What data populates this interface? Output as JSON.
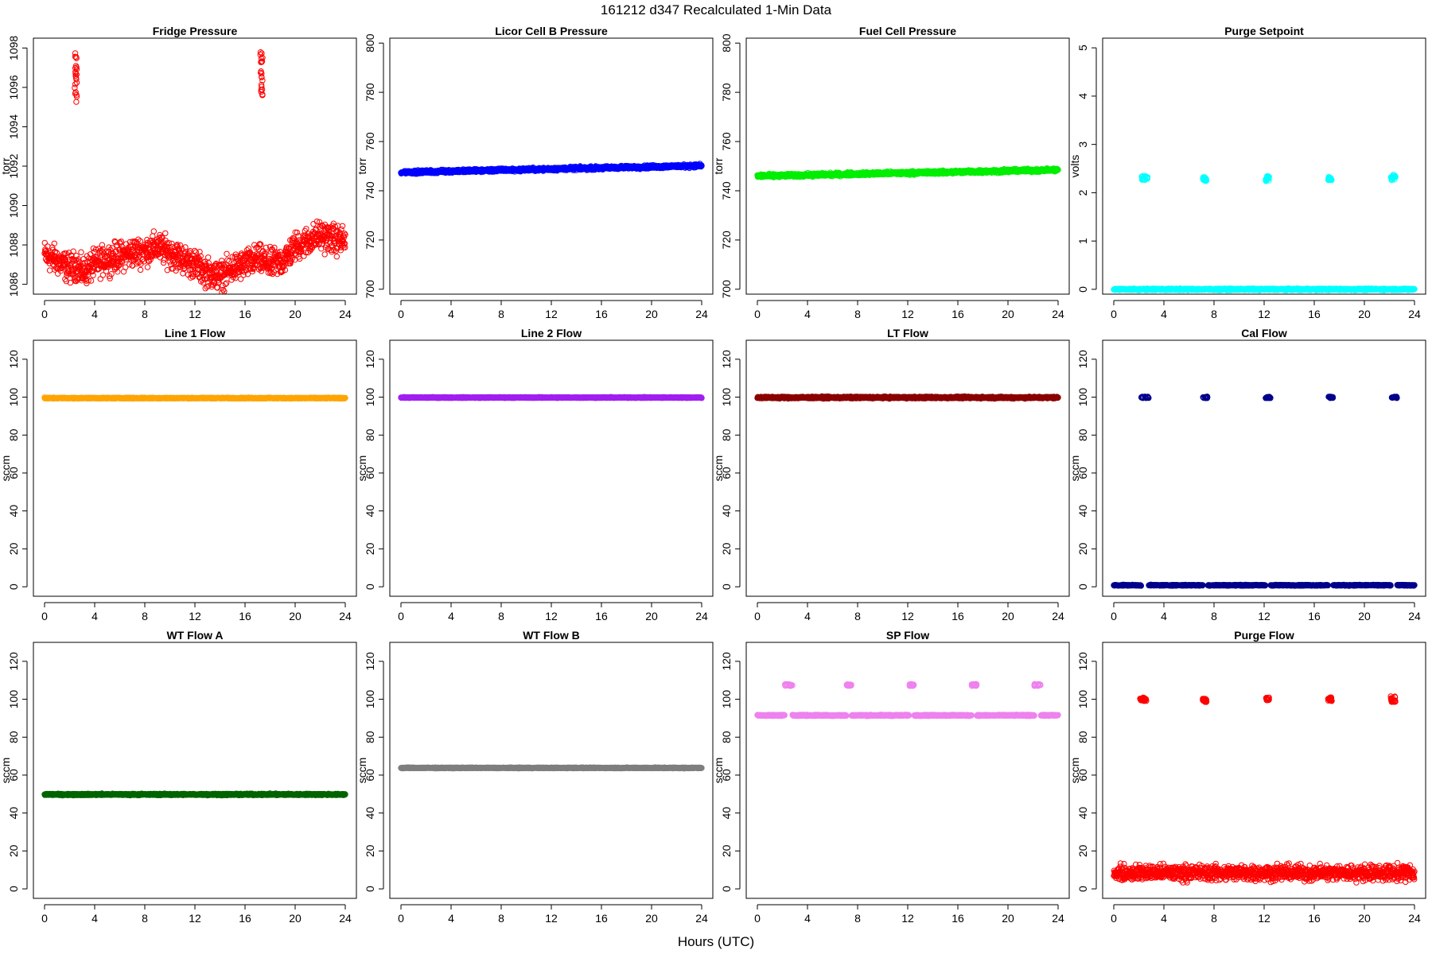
{
  "figure": {
    "title": "161212   d347   Recalculated 1-Min Data",
    "xlabel": "Hours (UTC)"
  },
  "chart_data": [
    {
      "type": "scatter",
      "title": "Fridge Pressure",
      "ylabel": "torr",
      "color": "#ff0000",
      "marker": "open",
      "xlim": [
        0,
        24
      ],
      "ylim": [
        1085.5,
        1098.5
      ],
      "xticks": [
        0,
        4,
        8,
        12,
        16,
        20,
        24
      ],
      "yticks": [
        1086,
        1088,
        1090,
        1092,
        1094,
        1096,
        1098
      ],
      "baseline": [
        [
          0,
          1087.5
        ],
        [
          1,
          1087.2
        ],
        [
          2,
          1086.8
        ],
        [
          2.5,
          1087.0
        ],
        [
          3,
          1086.6
        ],
        [
          4,
          1087.0
        ],
        [
          5,
          1087.3
        ],
        [
          6,
          1087.4
        ],
        [
          7,
          1087.6
        ],
        [
          8,
          1087.7
        ],
        [
          9,
          1087.9
        ],
        [
          10,
          1087.6
        ],
        [
          11,
          1087.3
        ],
        [
          12,
          1087.0
        ],
        [
          13,
          1086.6
        ],
        [
          14,
          1086.4
        ],
        [
          15,
          1086.8
        ],
        [
          16,
          1087.0
        ],
        [
          17,
          1087.3
        ],
        [
          18,
          1087.0
        ],
        [
          19,
          1087.2
        ],
        [
          20,
          1087.9
        ],
        [
          21,
          1088.2
        ],
        [
          22,
          1088.5
        ],
        [
          23,
          1088.3
        ],
        [
          24,
          1088.2
        ]
      ],
      "noise": 0.9,
      "step": 0.02,
      "density": 1,
      "spikes": [
        {
          "x": [
            2.4,
            2.6
          ],
          "y": [
            1095.2,
            1097.8
          ]
        },
        {
          "x": [
            17.2,
            17.4
          ],
          "y": [
            1095.5,
            1097.9
          ]
        }
      ]
    },
    {
      "type": "scatter",
      "title": "Licor Cell B Pressure",
      "ylabel": "torr",
      "color": "#0000ff",
      "marker": "open",
      "xlim": [
        0,
        24
      ],
      "ylim": [
        698,
        802
      ],
      "xticks": [
        0,
        4,
        8,
        12,
        16,
        20,
        24
      ],
      "yticks": [
        700,
        720,
        740,
        760,
        780,
        800
      ],
      "baseline": [
        [
          0,
          747.5
        ],
        [
          24,
          750.2
        ]
      ],
      "noise": 0.8,
      "step": 0.02,
      "density": 1,
      "spikes": []
    },
    {
      "type": "scatter",
      "title": "Fuel Cell Pressure",
      "ylabel": "torr",
      "color": "#00ee00",
      "marker": "open",
      "xlim": [
        0,
        24
      ],
      "ylim": [
        698,
        802
      ],
      "xticks": [
        0,
        4,
        8,
        12,
        16,
        20,
        24
      ],
      "yticks": [
        700,
        720,
        740,
        760,
        780,
        800
      ],
      "baseline": [
        [
          0,
          746.0
        ],
        [
          24,
          748.5
        ]
      ],
      "noise": 0.8,
      "step": 0.02,
      "density": 1,
      "spikes": []
    },
    {
      "type": "scatter",
      "title": "Purge Setpoint",
      "ylabel": "volts",
      "color": "#00ffff",
      "marker": "open",
      "xlim": [
        0,
        24
      ],
      "ylim": [
        -0.1,
        5.2
      ],
      "xticks": [
        0,
        4,
        8,
        12,
        16,
        20,
        24
      ],
      "yticks": [
        0,
        1,
        2,
        3,
        4,
        5
      ],
      "baseline": [
        [
          0,
          0
        ],
        [
          24,
          0
        ]
      ],
      "noise": 0.02,
      "step": 0.02,
      "density": 1,
      "spikes": [
        {
          "x": [
            2.2,
            2.7
          ],
          "y": [
            2.26,
            2.36
          ]
        },
        {
          "x": [
            7.1,
            7.4
          ],
          "y": [
            2.24,
            2.34
          ]
        },
        {
          "x": [
            12.1,
            12.4
          ],
          "y": [
            2.24,
            2.35
          ]
        },
        {
          "x": [
            17.1,
            17.4
          ],
          "y": [
            2.26,
            2.33
          ]
        },
        {
          "x": [
            22.1,
            22.5
          ],
          "y": [
            2.26,
            2.38
          ]
        }
      ]
    },
    {
      "type": "scatter",
      "title": "Line 1 Flow",
      "ylabel": "sccm",
      "color": "#ffa500",
      "marker": "open",
      "xlim": [
        0,
        24
      ],
      "ylim": [
        -5,
        130
      ],
      "xticks": [
        0,
        4,
        8,
        12,
        16,
        20,
        24
      ],
      "yticks": [
        0,
        20,
        40,
        60,
        80,
        100,
        120
      ],
      "baseline": [
        [
          0,
          99.5
        ],
        [
          24,
          99.5
        ]
      ],
      "noise": 0.3,
      "step": 0.02,
      "density": 1,
      "spikes": []
    },
    {
      "type": "scatter",
      "title": "Line 2 Flow",
      "ylabel": "sccm",
      "color": "#a020f0",
      "marker": "open",
      "xlim": [
        0,
        24
      ],
      "ylim": [
        -5,
        130
      ],
      "xticks": [
        0,
        4,
        8,
        12,
        16,
        20,
        24
      ],
      "yticks": [
        0,
        20,
        40,
        60,
        80,
        100,
        120
      ],
      "baseline": [
        [
          0,
          99.8
        ],
        [
          24,
          99.8
        ]
      ],
      "noise": 0.3,
      "step": 0.02,
      "density": 1,
      "spikes": []
    },
    {
      "type": "scatter",
      "title": "LT Flow",
      "ylabel": "sccm",
      "color": "#8b0000",
      "marker": "open",
      "xlim": [
        0,
        24
      ],
      "ylim": [
        -5,
        130
      ],
      "xticks": [
        0,
        4,
        8,
        12,
        16,
        20,
        24
      ],
      "yticks": [
        0,
        20,
        40,
        60,
        80,
        100,
        120
      ],
      "baseline": [
        [
          0,
          99.8
        ],
        [
          24,
          99.8
        ]
      ],
      "noise": 0.6,
      "step": 0.02,
      "density": 1,
      "spikes": []
    },
    {
      "type": "scatter",
      "title": "Cal Flow",
      "ylabel": "sccm",
      "color": "#00008b",
      "marker": "open",
      "xlim": [
        0,
        24
      ],
      "ylim": [
        -5,
        130
      ],
      "xticks": [
        0,
        4,
        8,
        12,
        16,
        20,
        24
      ],
      "yticks": [
        0,
        20,
        40,
        60,
        80,
        100,
        120
      ],
      "baseline": [
        [
          0,
          0.8
        ],
        [
          24,
          0.8
        ]
      ],
      "noise": 0.3,
      "step": 0.02,
      "density": 1,
      "gaps": [
        [
          2.2,
          2.8
        ],
        [
          7.1,
          7.5
        ],
        [
          12.1,
          12.5
        ],
        [
          17.1,
          17.5
        ],
        [
          22.1,
          22.6
        ]
      ],
      "spikes": [
        {
          "x": [
            2.2,
            2.8
          ],
          "y": [
            99.5,
            100.3
          ]
        },
        {
          "x": [
            7.1,
            7.5
          ],
          "y": [
            99.5,
            100.3
          ]
        },
        {
          "x": [
            12.1,
            12.5
          ],
          "y": [
            99.5,
            100.3
          ]
        },
        {
          "x": [
            17.1,
            17.5
          ],
          "y": [
            99.5,
            100.3
          ]
        },
        {
          "x": [
            22.1,
            22.6
          ],
          "y": [
            99.5,
            100.3
          ]
        }
      ]
    },
    {
      "type": "scatter",
      "title": "WT Flow A",
      "ylabel": "sccm",
      "color": "#006400",
      "marker": "open",
      "xlim": [
        0,
        24
      ],
      "ylim": [
        -5,
        130
      ],
      "xticks": [
        0,
        4,
        8,
        12,
        16,
        20,
        24
      ],
      "yticks": [
        0,
        20,
        40,
        60,
        80,
        100,
        120
      ],
      "baseline": [
        [
          0,
          49.8
        ],
        [
          24,
          49.8
        ]
      ],
      "noise": 0.5,
      "step": 0.02,
      "density": 1,
      "spikes": []
    },
    {
      "type": "scatter",
      "title": "WT Flow B",
      "ylabel": "sccm",
      "color": "#7f7f7f",
      "marker": "open",
      "xlim": [
        0,
        24
      ],
      "ylim": [
        -5,
        130
      ],
      "xticks": [
        0,
        4,
        8,
        12,
        16,
        20,
        24
      ],
      "yticks": [
        0,
        20,
        40,
        60,
        80,
        100,
        120
      ],
      "baseline": [
        [
          0,
          63.8
        ],
        [
          24,
          63.8
        ]
      ],
      "noise": 0.3,
      "step": 0.02,
      "density": 1,
      "spikes": []
    },
    {
      "type": "scatter",
      "title": "SP Flow",
      "ylabel": "sccm",
      "color": "#ee82ee",
      "marker": "open",
      "xlim": [
        0,
        24
      ],
      "ylim": [
        -5,
        130
      ],
      "xticks": [
        0,
        4,
        8,
        12,
        16,
        20,
        24
      ],
      "yticks": [
        0,
        20,
        40,
        60,
        80,
        100,
        120
      ],
      "baseline": [
        [
          0,
          91.5
        ],
        [
          24,
          91.5
        ]
      ],
      "noise": 0.4,
      "step": 0.02,
      "density": 1,
      "gaps": [
        [
          2.2,
          2.8
        ],
        [
          7.1,
          7.5
        ],
        [
          12.1,
          12.5
        ],
        [
          17.1,
          17.5
        ],
        [
          22.1,
          22.6
        ]
      ],
      "spikes": [
        {
          "x": [
            2.2,
            2.8
          ],
          "y": [
            107,
            108
          ]
        },
        {
          "x": [
            7.1,
            7.5
          ],
          "y": [
            107,
            108
          ]
        },
        {
          "x": [
            12.1,
            12.5
          ],
          "y": [
            107,
            108
          ]
        },
        {
          "x": [
            17.1,
            17.5
          ],
          "y": [
            107,
            108
          ]
        },
        {
          "x": [
            22.1,
            22.6
          ],
          "y": [
            107,
            108
          ]
        }
      ]
    },
    {
      "type": "scatter",
      "title": "Purge Flow",
      "ylabel": "sccm",
      "color": "#ff0000",
      "marker": "open",
      "xlim": [
        0,
        24
      ],
      "ylim": [
        -5,
        130
      ],
      "xticks": [
        0,
        4,
        8,
        12,
        16,
        20,
        24
      ],
      "yticks": [
        0,
        20,
        40,
        60,
        80,
        100,
        120
      ],
      "baseline": [
        [
          0,
          8.5
        ],
        [
          24,
          8.5
        ]
      ],
      "noise": 5,
      "step": 0.02,
      "density": 1,
      "spikes": [
        {
          "x": [
            2.1,
            2.6
          ],
          "y": [
            99,
            101
          ]
        },
        {
          "x": [
            7.1,
            7.4
          ],
          "y": [
            98.5,
            100.5
          ]
        },
        {
          "x": [
            12.1,
            12.4
          ],
          "y": [
            99,
            101
          ]
        },
        {
          "x": [
            17.1,
            17.4
          ],
          "y": [
            99,
            101
          ]
        },
        {
          "x": [
            22.1,
            22.5
          ],
          "y": [
            98.5,
            101.5
          ]
        }
      ]
    }
  ]
}
